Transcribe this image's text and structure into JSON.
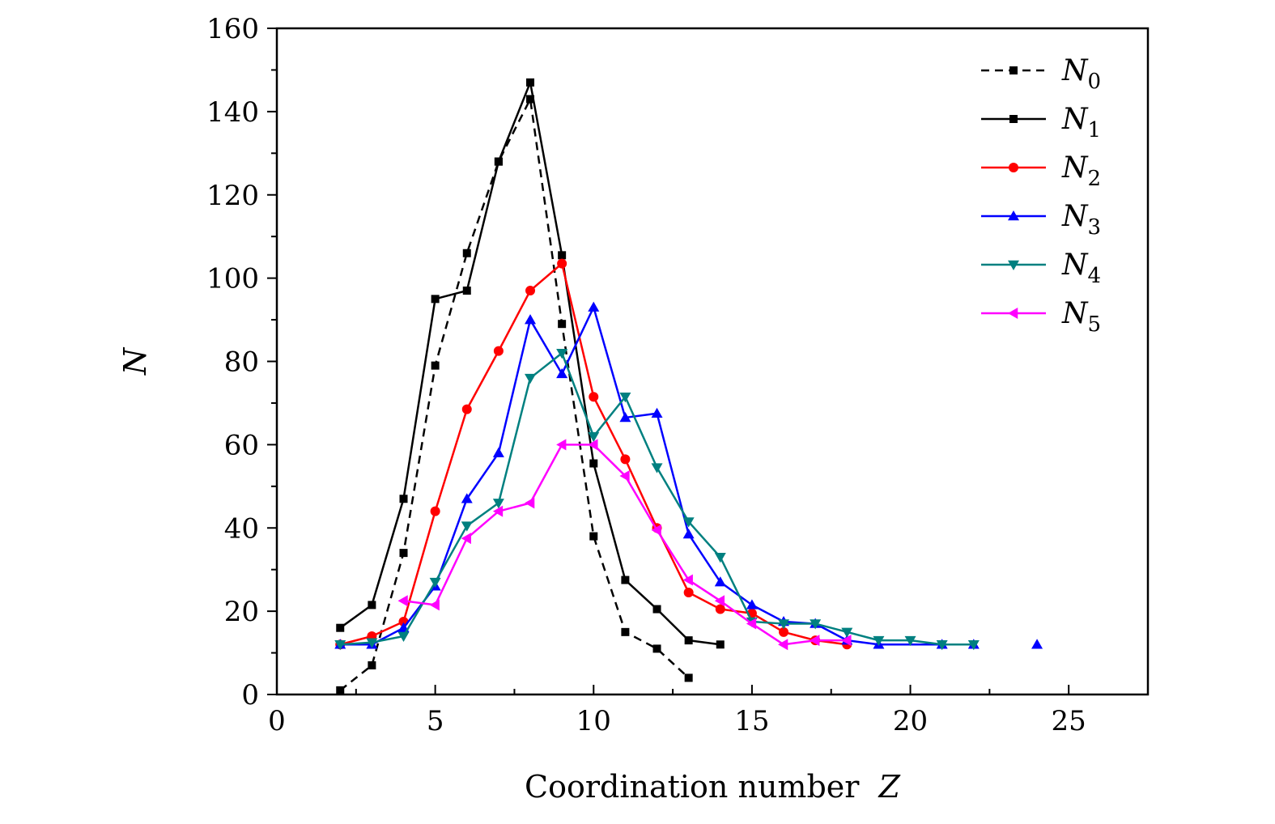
{
  "chart_data": {
    "type": "line",
    "title": "",
    "xlabel": "Coordination number",
    "xlabel_var": "Z",
    "ylabel": "N",
    "xlim": [
      0,
      27.5
    ],
    "ylim": [
      0,
      160
    ],
    "xticks": [
      0,
      5,
      10,
      15,
      20,
      25
    ],
    "yticks": [
      0,
      20,
      40,
      60,
      80,
      100,
      120,
      140,
      160
    ],
    "grid": false,
    "legend_position": "top-right",
    "series": [
      {
        "name": "N",
        "subscript": "0",
        "color": "#000000",
        "dash": "dashed",
        "marker": "square",
        "x": [
          2,
          3,
          4,
          5,
          6,
          7,
          8,
          9,
          10,
          11,
          12,
          13
        ],
        "y": [
          1,
          7,
          34,
          79,
          106,
          128,
          143,
          89,
          38,
          15,
          11,
          4
        ]
      },
      {
        "name": "N",
        "subscript": "1",
        "color": "#000000",
        "dash": "solid",
        "marker": "square",
        "x": [
          2,
          3,
          4,
          5,
          6,
          7,
          8,
          9,
          10,
          11,
          12,
          13,
          14
        ],
        "y": [
          16,
          21.5,
          47,
          95,
          97,
          128,
          147,
          105.5,
          55.5,
          27.5,
          20.5,
          13,
          12
        ]
      },
      {
        "name": "N",
        "subscript": "2",
        "color": "#ff0000",
        "dash": "solid",
        "marker": "circle",
        "x": [
          2,
          3,
          4,
          5,
          6,
          7,
          8,
          9,
          10,
          11,
          12,
          13,
          14,
          15,
          16,
          17,
          18
        ],
        "y": [
          12,
          14,
          17.5,
          44,
          68.5,
          82.5,
          97,
          103.5,
          71.5,
          56.5,
          40,
          24.5,
          20.5,
          19.5,
          15,
          13,
          12
        ]
      },
      {
        "name": "N",
        "subscript": "3",
        "color": "#0000ff",
        "dash": "solid",
        "marker": "triangle-up",
        "x": [
          2,
          3,
          4,
          5,
          6,
          7,
          8,
          9,
          10,
          11,
          12,
          13,
          14,
          15,
          16,
          17,
          18,
          19,
          21,
          22,
          24
        ],
        "y": [
          12,
          12,
          16,
          26,
          47,
          58,
          90,
          77,
          93,
          66.5,
          67.5,
          38.5,
          27,
          21.5,
          17.5,
          17,
          13,
          12,
          12,
          12,
          12
        ],
        "breaks_after": [
          22
        ]
      },
      {
        "name": "N",
        "subscript": "4",
        "color": "#008080",
        "dash": "solid",
        "marker": "triangle-down",
        "x": [
          2,
          3,
          4,
          5,
          6,
          7,
          8,
          9,
          10,
          11,
          12,
          13,
          14,
          15,
          16,
          17,
          18,
          19,
          20,
          21,
          22
        ],
        "y": [
          12,
          12.5,
          14,
          27,
          40.5,
          46,
          76,
          82,
          62,
          71.5,
          54.5,
          41.5,
          33,
          17.5,
          17,
          17,
          15,
          13,
          13,
          12,
          12
        ]
      },
      {
        "name": "N",
        "subscript": "5",
        "color": "#ff00ff",
        "dash": "solid",
        "marker": "triangle-left",
        "x": [
          4,
          5,
          6,
          7,
          8,
          9,
          10,
          11,
          12,
          13,
          14,
          15,
          16,
          17,
          18
        ],
        "y": [
          22.5,
          21.5,
          37.5,
          44,
          46,
          60,
          60,
          52.5,
          39.5,
          27.5,
          22.5,
          17,
          12,
          13,
          13
        ]
      }
    ]
  }
}
